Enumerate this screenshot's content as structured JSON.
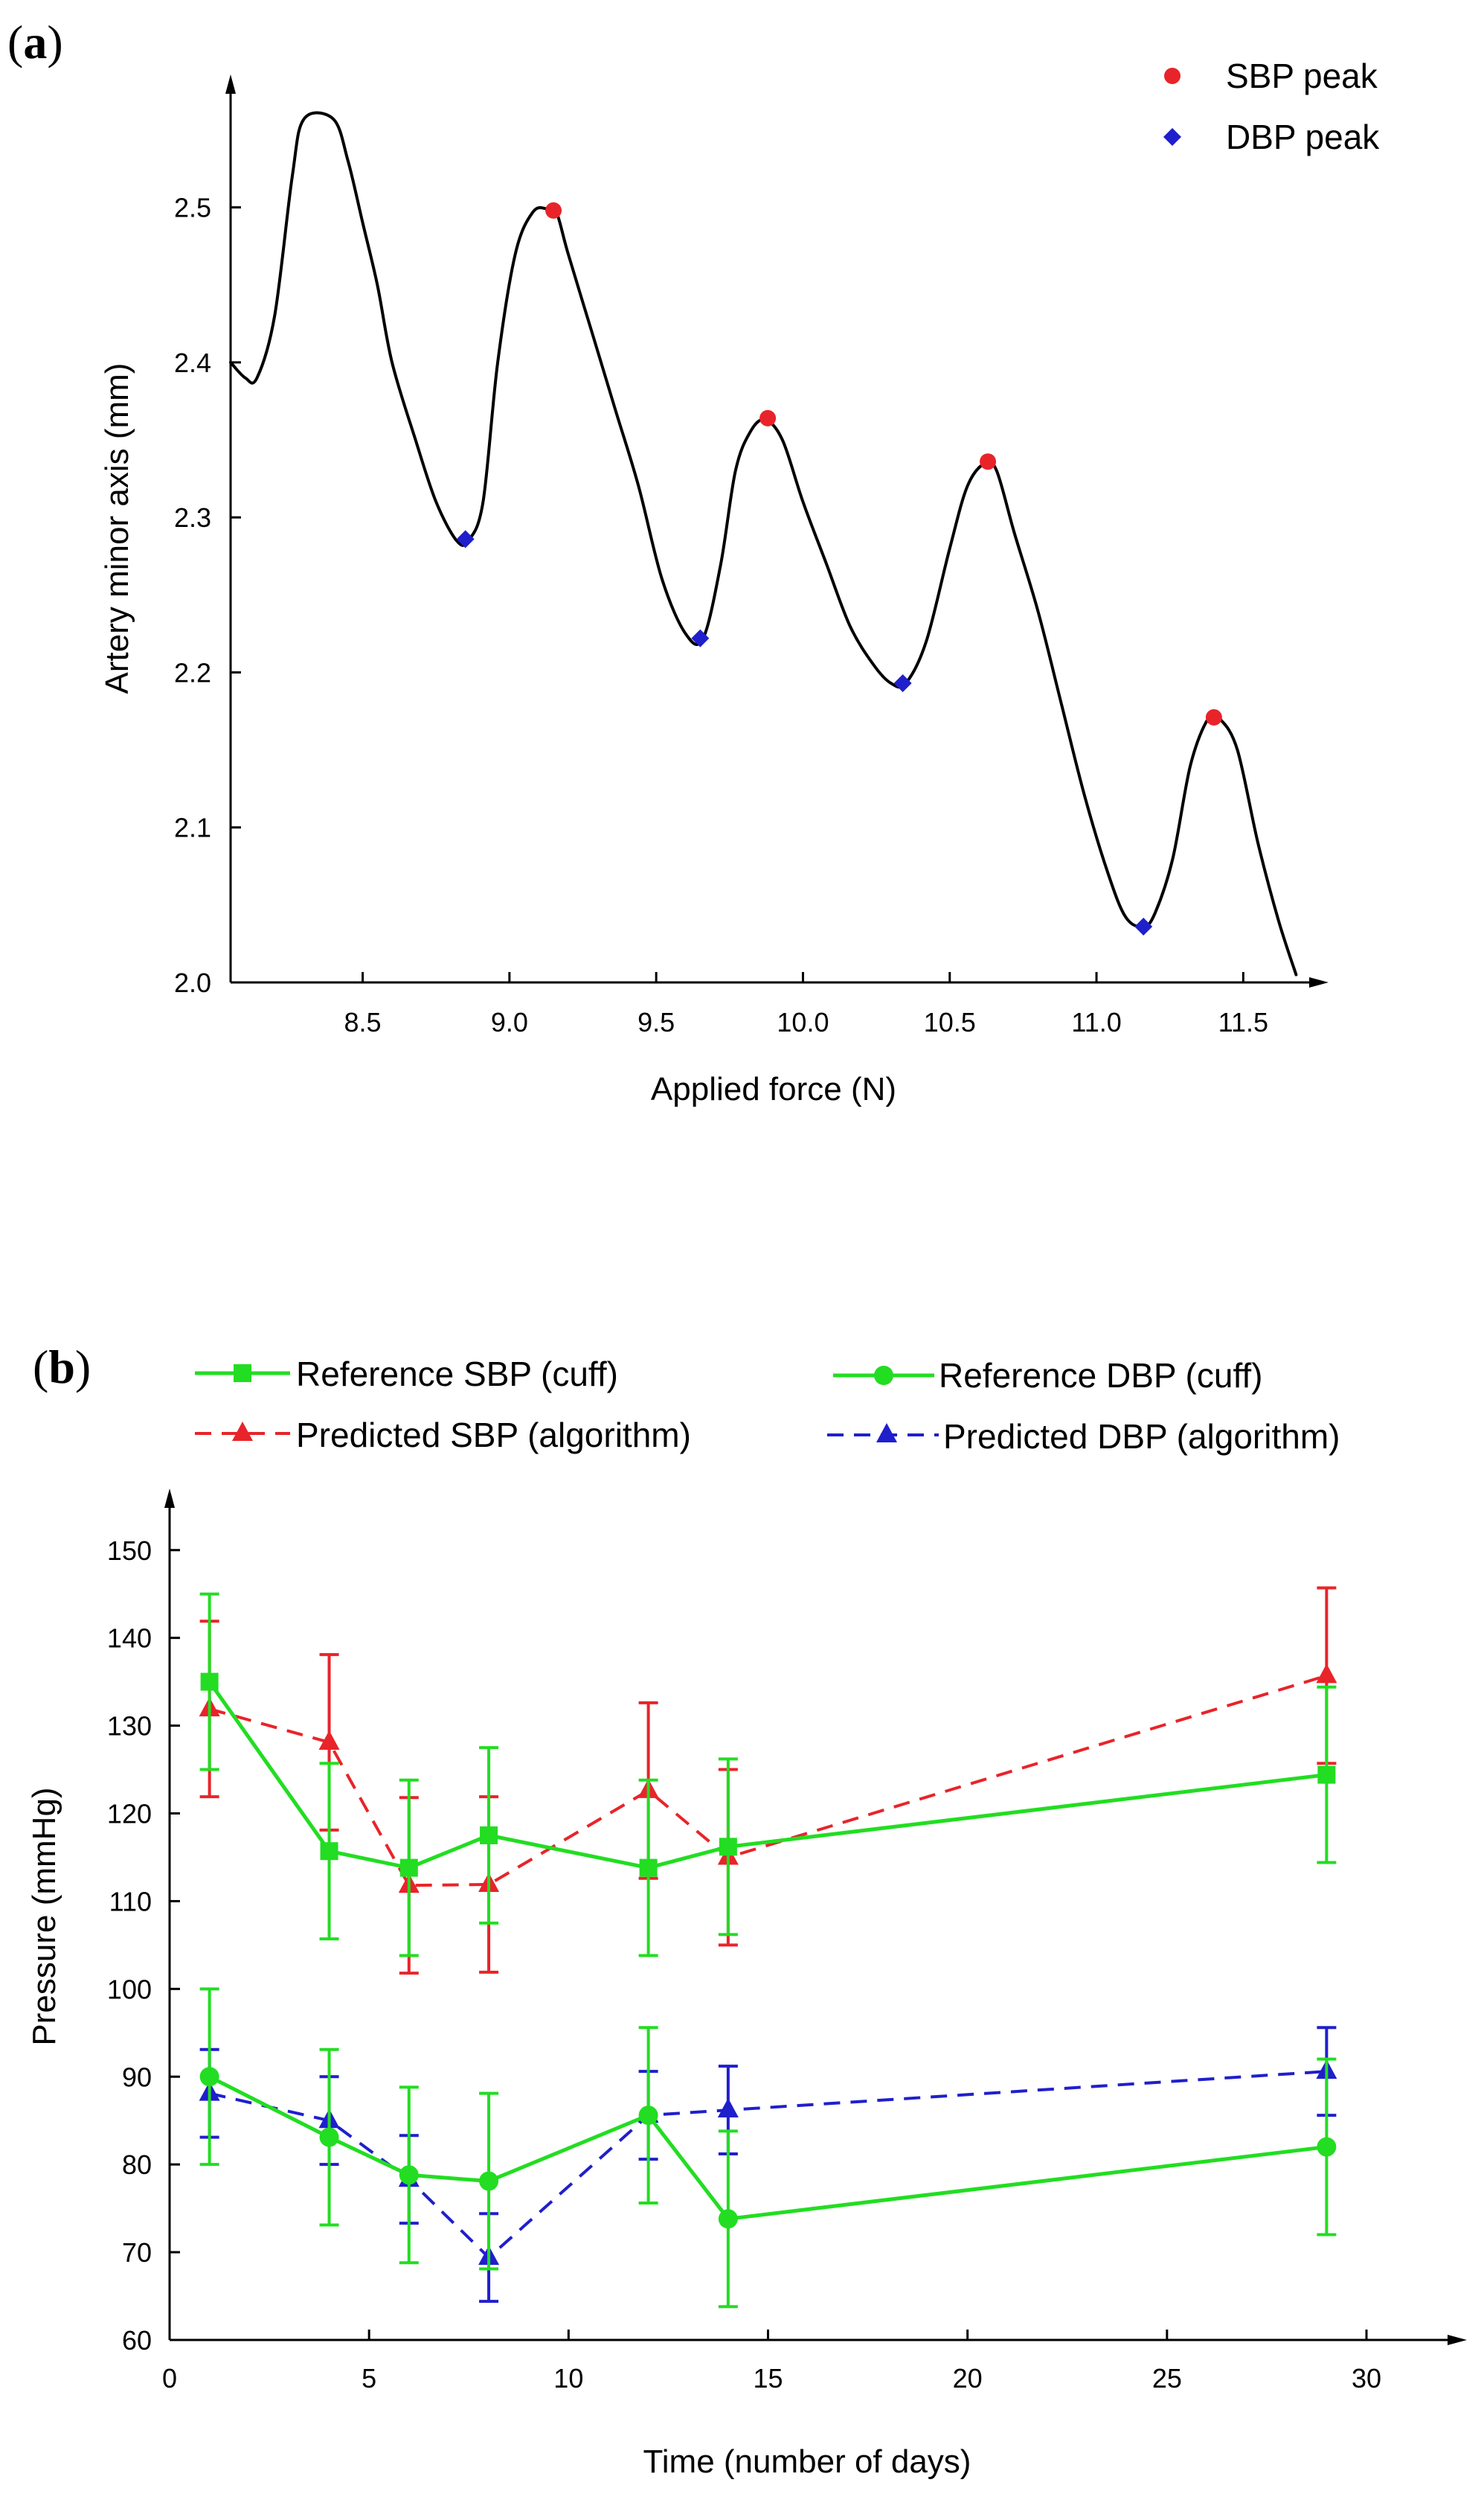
{
  "panels": {
    "a": {
      "label": "(a)",
      "label_letter": "a"
    },
    "b": {
      "label": "(b)",
      "label_letter": "b"
    }
  },
  "chart_data": [
    {
      "panel": "a",
      "type": "line",
      "xlabel": "Applied force (N)",
      "ylabel": "Artery minor axis (mm)",
      "xlim": [
        8.05,
        11.75
      ],
      "ylim": [
        2.0,
        2.58
      ],
      "xticks": [
        "8.5",
        "9.0",
        "9.5",
        "10.0",
        "10.5",
        "11.0",
        "11.5"
      ],
      "xtick_values": [
        8.5,
        9.0,
        9.5,
        10.0,
        10.5,
        11.0,
        11.5
      ],
      "yticks": [
        "2.0",
        "2.1",
        "2.2",
        "2.3",
        "2.4",
        "2.5"
      ],
      "ytick_values": [
        2.0,
        2.1,
        2.2,
        2.3,
        2.4,
        2.5
      ],
      "curve": {
        "x": [
          8.05,
          8.1,
          8.14,
          8.2,
          8.26,
          8.3,
          8.4,
          8.45,
          8.5,
          8.55,
          8.6,
          8.68,
          8.75,
          8.82,
          8.86,
          8.91,
          8.96,
          9.02,
          9.08,
          9.13,
          9.16,
          9.2,
          9.28,
          9.36,
          9.44,
          9.52,
          9.6,
          9.66,
          9.72,
          9.77,
          9.82,
          9.87,
          9.93,
          10.0,
          10.08,
          10.16,
          10.24,
          10.3,
          10.35,
          10.42,
          10.5,
          10.56,
          10.62,
          10.66,
          10.72,
          10.8,
          10.88,
          10.96,
          11.04,
          11.1,
          11.16,
          11.2,
          11.26,
          11.32,
          11.38,
          11.42,
          11.48,
          11.55,
          11.62,
          11.68
        ],
        "y": [
          2.4,
          2.39,
          2.39,
          2.43,
          2.52,
          2.557,
          2.557,
          2.53,
          2.49,
          2.45,
          2.4,
          2.35,
          2.31,
          2.285,
          2.285,
          2.31,
          2.4,
          2.47,
          2.497,
          2.499,
          2.497,
          2.47,
          2.42,
          2.37,
          2.32,
          2.26,
          2.225,
          2.222,
          2.27,
          2.33,
          2.355,
          2.363,
          2.35,
          2.31,
          2.27,
          2.23,
          2.205,
          2.193,
          2.193,
          2.22,
          2.28,
          2.32,
          2.335,
          2.33,
          2.29,
          2.24,
          2.18,
          2.12,
          2.07,
          2.042,
          2.036,
          2.045,
          2.08,
          2.14,
          2.17,
          2.17,
          2.15,
          2.09,
          2.04,
          2.005
        ]
      },
      "series": [
        {
          "name": "SBP peak",
          "marker": "circle",
          "color": "#e8242a",
          "x": [
            9.15,
            9.88,
            10.63,
            11.4
          ],
          "y": [
            2.498,
            2.364,
            2.336,
            2.171
          ]
        },
        {
          "name": "DBP peak",
          "marker": "diamond",
          "color": "#1f1fcc",
          "x": [
            8.85,
            9.65,
            10.34,
            11.16
          ],
          "y": [
            2.286,
            2.222,
            2.193,
            2.036
          ]
        }
      ],
      "legend": {
        "placement": "top-right",
        "entries": [
          "SBP peak",
          "DBP peak"
        ]
      },
      "line_color": "#000000"
    },
    {
      "panel": "b",
      "type": "line",
      "xlabel": "Time (number of days)",
      "ylabel": "Pressure (mmHg)",
      "xlim": [
        0,
        32.2
      ],
      "ylim": [
        60,
        156
      ],
      "xticks": [
        "0",
        "5",
        "10",
        "15",
        "20",
        "25",
        "30"
      ],
      "xtick_values": [
        0,
        5,
        10,
        15,
        20,
        25,
        30
      ],
      "yticks": [
        "60",
        "70",
        "80",
        "90",
        "100",
        "110",
        "120",
        "130",
        "140",
        "150"
      ],
      "ytick_values": [
        60,
        70,
        80,
        90,
        100,
        110,
        120,
        130,
        140,
        150
      ],
      "series": [
        {
          "name": "Reference SBP (cuff)",
          "marker": "square",
          "style": "solid",
          "color": "#22dd22",
          "x": [
            1,
            4,
            6,
            8,
            12,
            14,
            29
          ],
          "y": [
            135,
            115.7,
            113.8,
            117.5,
            113.8,
            116.2,
            124.4
          ],
          "err": [
            10,
            10,
            10,
            10,
            10,
            10,
            10
          ]
        },
        {
          "name": "Predicted SBP (algorithm)",
          "marker": "triangle",
          "style": "dashed",
          "color": "#e8242a",
          "x": [
            1,
            4,
            6,
            8,
            12,
            14,
            29
          ],
          "y": [
            131.9,
            128.1,
            111.8,
            111.9,
            122.6,
            115.0,
            135.7
          ],
          "err": [
            10,
            10,
            10,
            10,
            10,
            10,
            10
          ]
        },
        {
          "name": "Reference DBP (cuff)",
          "marker": "circle",
          "style": "solid",
          "color": "#22dd22",
          "x": [
            1,
            4,
            6,
            8,
            12,
            14,
            29
          ],
          "y": [
            90.0,
            83.1,
            78.8,
            78.1,
            85.6,
            73.8,
            82.0
          ],
          "err": [
            10,
            10,
            10,
            10,
            10,
            10,
            10
          ]
        },
        {
          "name": "Predicted DBP (algorithm)",
          "marker": "triangle",
          "style": "dashed",
          "color": "#1f1fcc",
          "x": [
            1,
            4,
            6,
            8,
            12,
            14,
            29
          ],
          "y": [
            88.1,
            85.0,
            78.3,
            69.4,
            85.6,
            86.2,
            90.6
          ],
          "err": [
            5,
            5,
            5,
            5,
            5,
            5,
            5
          ]
        }
      ],
      "legend": {
        "placement": "top",
        "columns": 2,
        "entries": [
          "Reference SBP (cuff)",
          "Reference DBP (cuff)",
          "Predicted SBP (algorithm)",
          "Predicted DBP (algorithm)"
        ]
      }
    }
  ]
}
